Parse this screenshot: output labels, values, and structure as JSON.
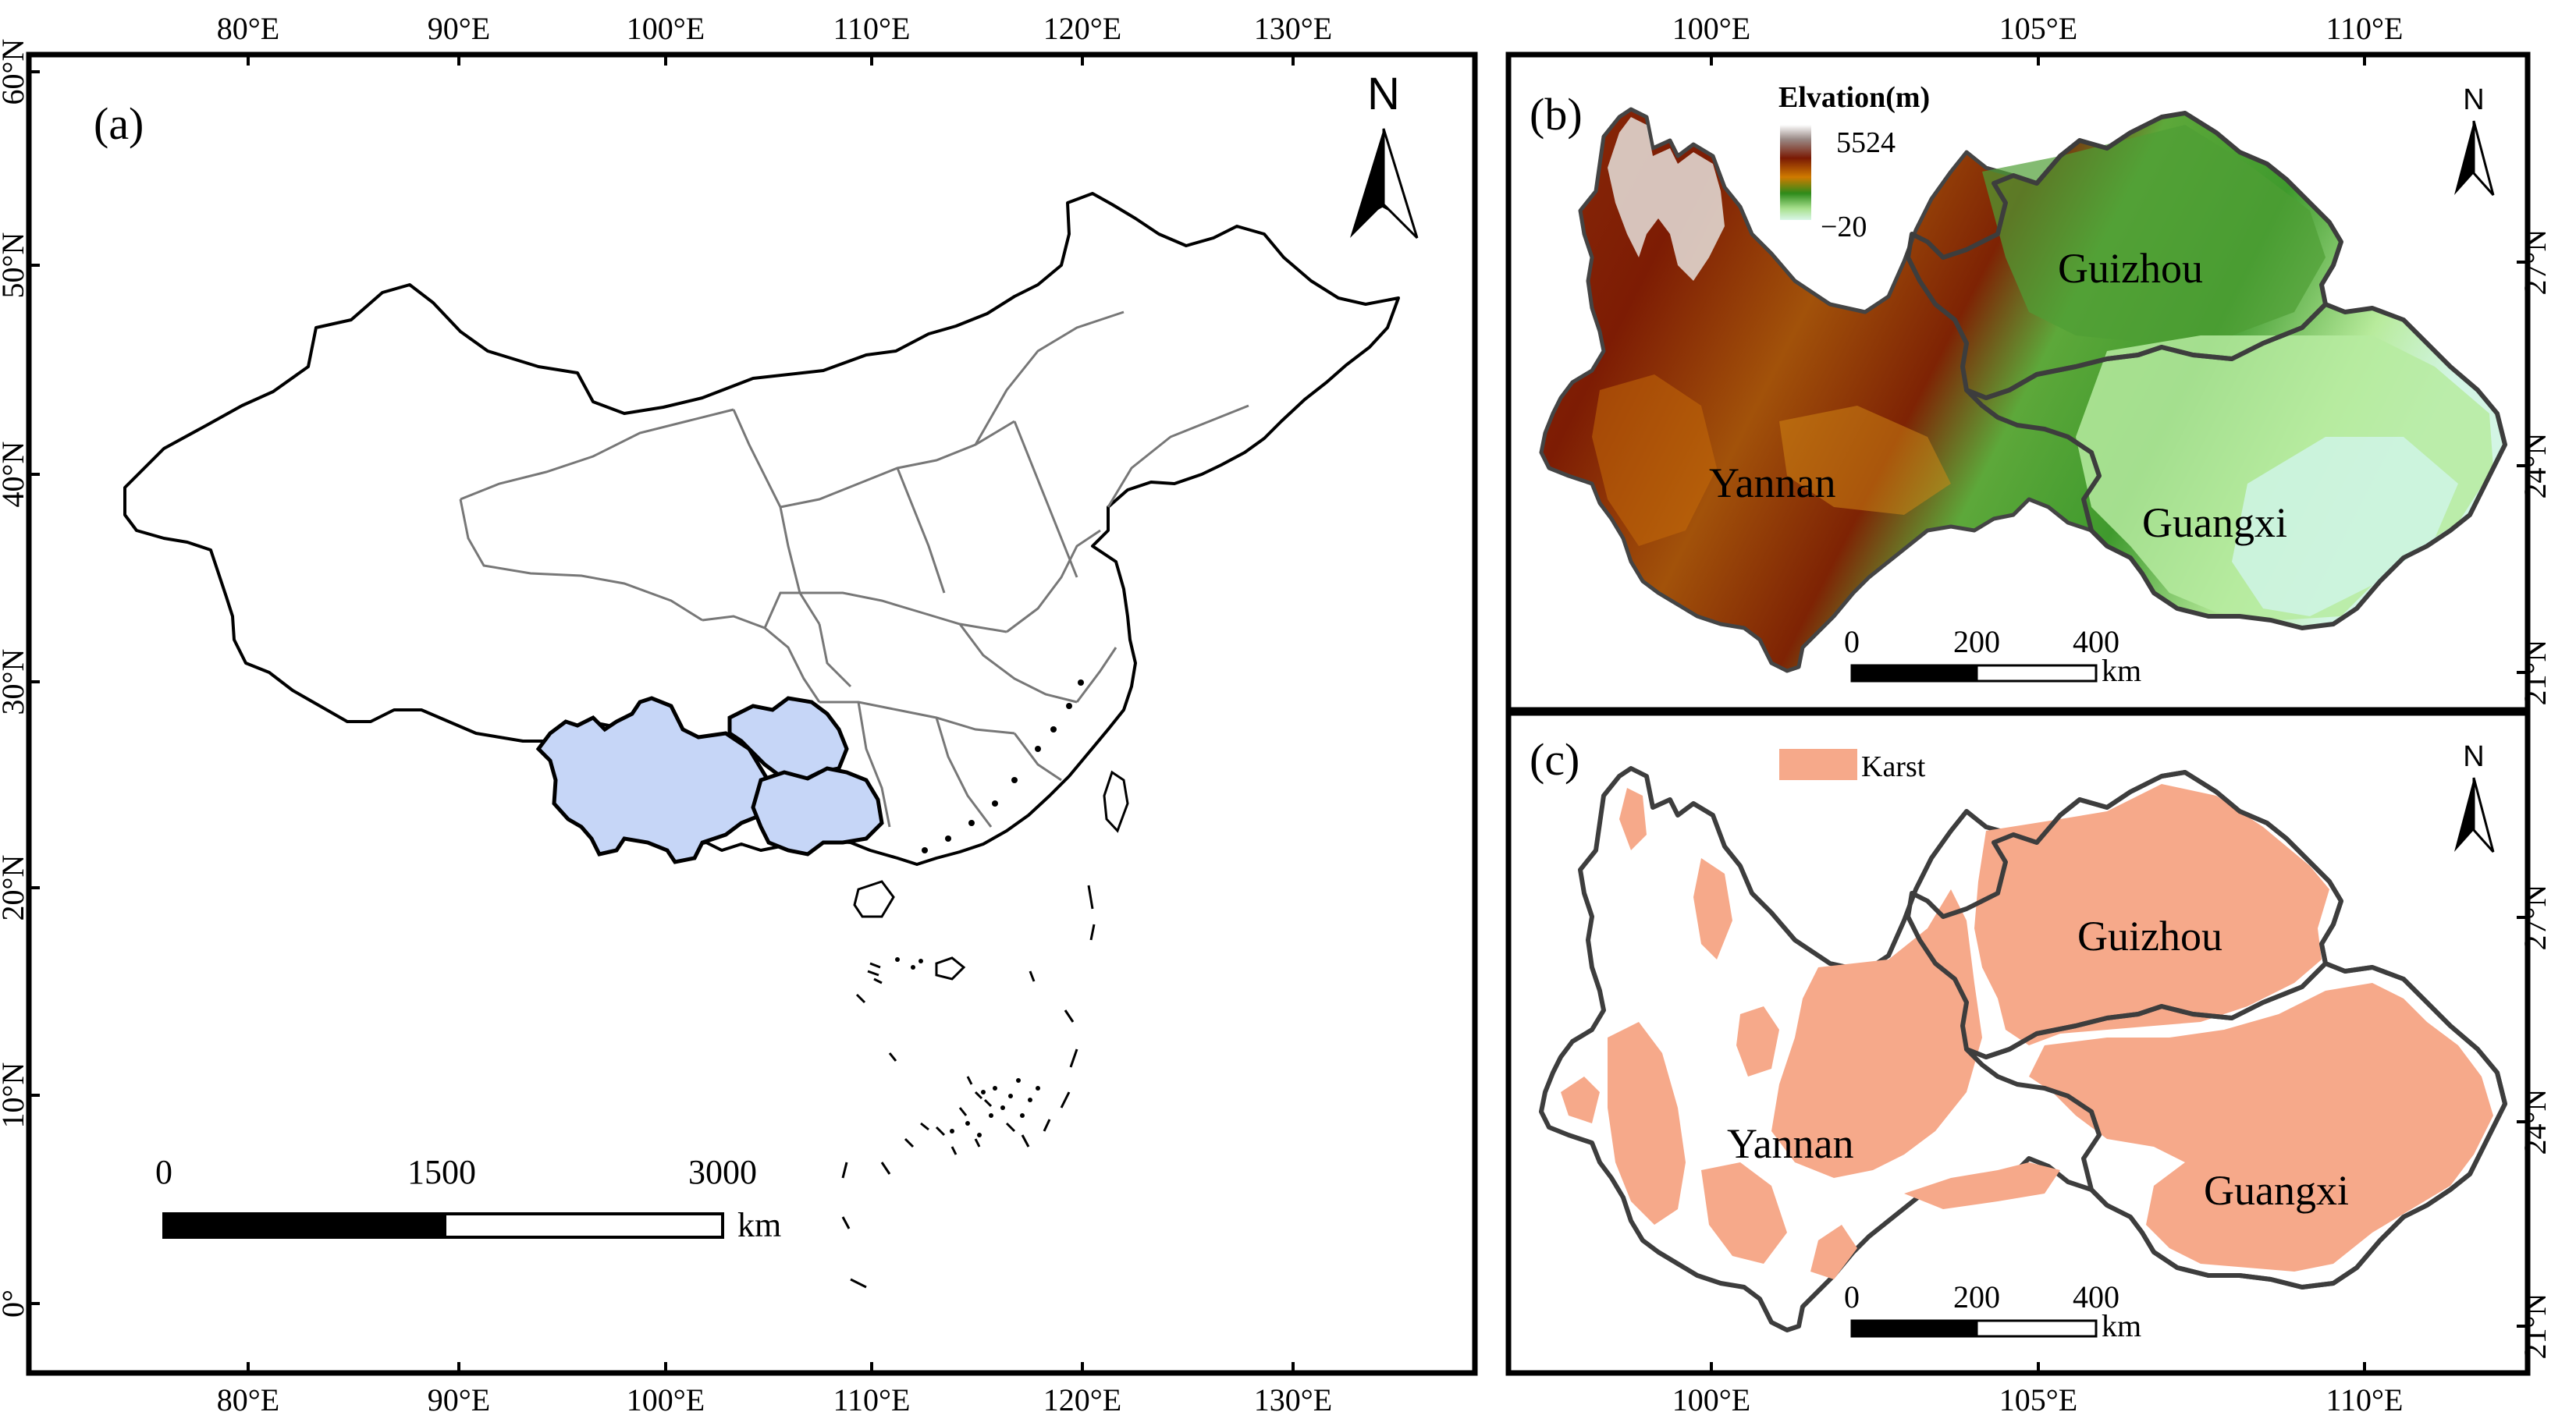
{
  "panels": {
    "a": {
      "label": "(a)",
      "top_ticks": [
        "80°E",
        "90°E",
        "100°E",
        "110°E",
        "120°E",
        "130°E"
      ],
      "bottom_ticks": [
        "80°E",
        "90°E",
        "100°E",
        "110°E",
        "120°E",
        "130°E"
      ],
      "left_ticks": [
        "60°N",
        "50°N",
        "40°N",
        "30°N",
        "20°N",
        "10°N",
        "0°"
      ],
      "north": "N",
      "scale": {
        "labels": [
          "0",
          "1500",
          "3000"
        ],
        "unit": "km"
      },
      "highlight_color": "#c6d6f7"
    },
    "b": {
      "label": "(b)",
      "top_ticks": [
        "100°E",
        "105°E",
        "110°E"
      ],
      "right_ticks": [
        "27°N",
        "24°N",
        "21°N"
      ],
      "north": "N",
      "legend": {
        "title": "Elvation(m)",
        "max": "5524",
        "min": "−20"
      },
      "regions": [
        "Guizhou",
        "Yannan",
        "Guangxi"
      ],
      "scale": {
        "labels": [
          "0",
          "200",
          "400"
        ],
        "unit": "km"
      }
    },
    "c": {
      "label": "(c)",
      "bottom_ticks": [
        "100°E",
        "105°E",
        "110°E"
      ],
      "right_ticks": [
        "27°N",
        "24°N",
        "21°N"
      ],
      "north": "N",
      "legend": {
        "label": "Karst",
        "color": "#f6a98a"
      },
      "regions": [
        "Guizhou",
        "Yannan",
        "Guangxi"
      ],
      "scale": {
        "labels": [
          "0",
          "200",
          "400"
        ],
        "unit": "km"
      }
    }
  }
}
